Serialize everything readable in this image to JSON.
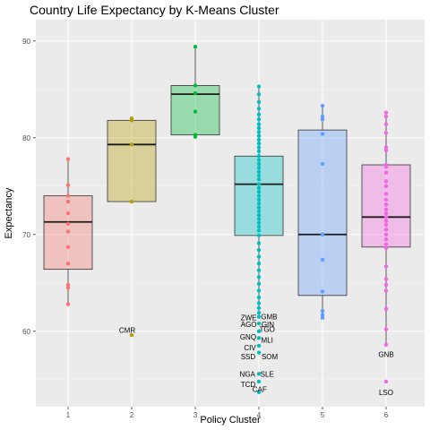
{
  "chart_data": {
    "type": "box",
    "title": "Country Life Expectancy by K-Means Cluster",
    "xlabel": "Policy Cluster",
    "ylabel": "Expectancy",
    "categories": [
      "1",
      "2",
      "3",
      "4",
      "5",
      "6"
    ],
    "ylim": [
      52.2,
      92.2
    ],
    "yticks": [
      60,
      70,
      80,
      90
    ],
    "grid": true,
    "legend": "none",
    "groups": [
      {
        "cluster": "1",
        "color": "#F8766D",
        "q1": 66.4,
        "median": 71.3,
        "q3": 74.0,
        "whisker_low": 62.8,
        "whisker_high": 77.8,
        "points": [
          77.8,
          75.1,
          74.0,
          73.4,
          72.2,
          71.1,
          70.3,
          68.7,
          67.0,
          64.8,
          64.5,
          62.8
        ]
      },
      {
        "cluster": "2",
        "color": "#B79F00",
        "q1": 73.4,
        "median": 79.3,
        "q3": 81.8,
        "whisker_low": 73.4,
        "whisker_high": 82.0,
        "points": [
          82.0,
          81.8,
          79.3,
          73.4,
          59.6
        ]
      },
      {
        "cluster": "3",
        "color": "#00BA38",
        "q1": 80.3,
        "median": 84.5,
        "q3": 85.4,
        "whisker_low": 80.1,
        "whisker_high": 89.4,
        "points": [
          89.4,
          85.4,
          84.6,
          82.7,
          80.3,
          80.1
        ]
      },
      {
        "cluster": "4",
        "color": "#00BFC4",
        "q1": 69.9,
        "median": 75.2,
        "q3": 78.1,
        "whisker_low": 61.9,
        "whisker_high": 85.3,
        "points": [
          85.3,
          84.5,
          83.7,
          83.0,
          82.4,
          81.9,
          81.4,
          81.0,
          80.6,
          80.2,
          79.8,
          79.4,
          79.0,
          78.6,
          78.1,
          77.7,
          77.3,
          76.9,
          76.5,
          76.1,
          75.7,
          75.2,
          74.8,
          74.4,
          74.0,
          73.6,
          73.2,
          72.8,
          72.4,
          72.0,
          71.6,
          71.2,
          70.8,
          70.4,
          69.9,
          69.1,
          68.4,
          67.7,
          67.0,
          66.3,
          65.6,
          64.9,
          64.2,
          63.5,
          62.9,
          62.4,
          61.9,
          61.5,
          60.8,
          60.0,
          59.3,
          58.5,
          57.8,
          55.6,
          54.8,
          53.7
        ],
        "outlier_labels": [
          {
            "label": "ZWE",
            "x": 3.84,
            "y": 61.4
          },
          {
            "label": "GMB",
            "x": 4.16,
            "y": 61.5
          },
          {
            "label": "AGO",
            "x": 3.84,
            "y": 60.7
          },
          {
            "label": "GIN",
            "x": 4.14,
            "y": 60.7
          },
          {
            "label": "TGO",
            "x": 4.13,
            "y": 60.2
          },
          {
            "label": "GNQ",
            "x": 3.83,
            "y": 59.4
          },
          {
            "label": "MLI",
            "x": 4.13,
            "y": 59.1
          },
          {
            "label": "CIV",
            "x": 3.86,
            "y": 58.3
          },
          {
            "label": "SSD",
            "x": 3.83,
            "y": 57.4
          },
          {
            "label": "SOM",
            "x": 4.17,
            "y": 57.4
          },
          {
            "label": "NGA",
            "x": 3.82,
            "y": 55.6
          },
          {
            "label": "SLE",
            "x": 4.13,
            "y": 55.6
          },
          {
            "label": "TCD",
            "x": 3.83,
            "y": 54.5
          },
          {
            "label": "CAF",
            "x": 4.01,
            "y": 54.0
          }
        ]
      },
      {
        "cluster": "5",
        "color": "#619CFF",
        "q1": 63.7,
        "median": 70.0,
        "q3": 80.8,
        "whisker_low": 61.4,
        "whisker_high": 83.3,
        "points": [
          83.3,
          82.2,
          81.9,
          80.4,
          77.3,
          70.0,
          67.4,
          64.1,
          62.1,
          61.7,
          61.4
        ]
      },
      {
        "cluster": "6",
        "color": "#F564E3",
        "q1": 68.7,
        "median": 71.8,
        "q3": 77.2,
        "whisker_low": 58.6,
        "whisker_high": 82.6,
        "points": [
          82.6,
          82.2,
          81.4,
          80.5,
          79.0,
          78.7,
          77.2,
          77.0,
          76.4,
          75.5,
          75.0,
          74.2,
          73.6,
          73.1,
          72.6,
          72.2,
          71.8,
          71.4,
          71.0,
          70.5,
          70.0,
          69.5,
          69.0,
          68.6,
          66.7,
          65.4,
          64.8,
          64.2,
          62.3,
          60.2,
          58.6,
          54.8
        ],
        "outlier_labels": [
          {
            "label": "GNB",
            "x": 6.0,
            "y": 57.6
          },
          {
            "label": "LSO",
            "x": 6.0,
            "y": 53.7
          }
        ]
      }
    ],
    "extra_labels": [
      {
        "label": "CMR",
        "x": 1.93,
        "y": 60.1
      }
    ]
  }
}
